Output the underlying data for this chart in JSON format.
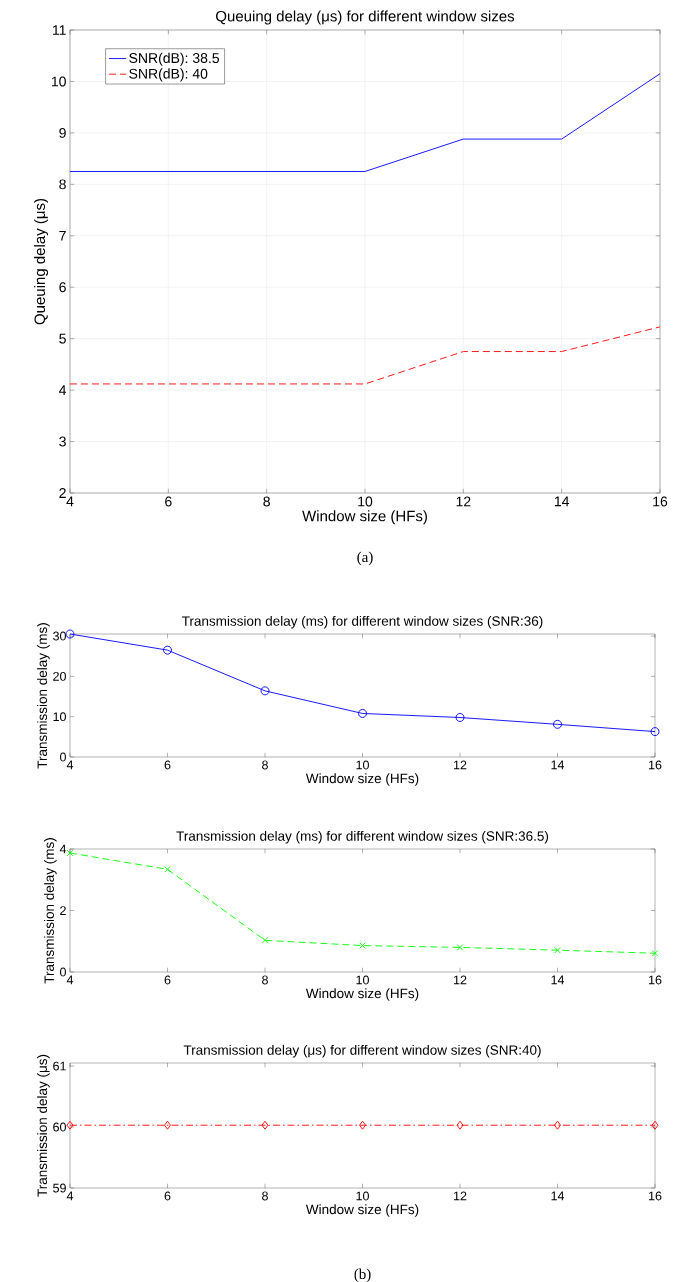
{
  "chart_data": [
    {
      "type": "line",
      "title": "Queuing delay (μs) for different window sizes",
      "xlabel": "Window size (HFs)",
      "ylabel": "Queuing delay (μs)",
      "x": [
        4,
        6,
        8,
        10,
        12,
        14,
        16
      ],
      "series": [
        {
          "name": "SNR(dB): 38.5",
          "color": "#0000ff",
          "line_style": "solid",
          "values": [
            8.25,
            8.25,
            8.25,
            8.25,
            8.88,
            8.88,
            10.15
          ]
        },
        {
          "name": "SNR(dB): 40",
          "color": "#ff0000",
          "line_style": "dashed",
          "values": [
            4.12,
            4.12,
            4.12,
            4.12,
            4.75,
            4.75,
            5.23
          ]
        }
      ],
      "xlim": [
        4,
        16
      ],
      "xticks": [
        4,
        6,
        8,
        10,
        12,
        14,
        16
      ],
      "ylim": [
        2,
        11
      ],
      "yticks": [
        2,
        3,
        4,
        5,
        6,
        7,
        8,
        9,
        10,
        11
      ],
      "grid": true,
      "legend": "top left",
      "annotations": [
        "(a)"
      ]
    },
    {
      "type": "line",
      "title": "Transmission delay (ms) for different window sizes (SNR:36)",
      "xlabel": "Window size (HFs)",
      "ylabel": "Transmission delay (ms)",
      "x": [
        4,
        6,
        8,
        10,
        12,
        14,
        16
      ],
      "series": [
        {
          "color": "#0000ff",
          "line_style": "solid",
          "values": [
            30.5,
            26.5,
            16.4,
            10.8,
            9.8,
            8.1,
            6.3
          ]
        }
      ],
      "xlim": [
        4,
        16
      ],
      "xticks": [
        4,
        6,
        8,
        10,
        12,
        14,
        16
      ],
      "ylim": [
        0,
        30.5
      ],
      "yticks": [
        0,
        10,
        20,
        30
      ],
      "marker": "circle"
    },
    {
      "type": "line",
      "title": "Transmission delay (ms) for different window sizes (SNR:36.5)",
      "xlabel": "Window size (HFs)",
      "ylabel": "Transmission delay (ms)",
      "x": [
        4,
        6,
        8,
        10,
        12,
        14,
        16
      ],
      "series": [
        {
          "color": "#00ff00",
          "line_style": "dashed",
          "values": [
            3.87,
            3.34,
            1.03,
            0.86,
            0.8,
            0.71,
            0.61
          ]
        }
      ],
      "xlim": [
        4,
        16
      ],
      "xticks": [
        4,
        6,
        8,
        10,
        12,
        14,
        16
      ],
      "ylim": [
        0,
        4
      ],
      "yticks": [
        0,
        2,
        4
      ],
      "marker": "cross"
    },
    {
      "type": "line",
      "title": "Transmission delay (μs) for different window sizes (SNR:40)",
      "xlabel": "Window size (HFs)",
      "ylabel": "Transmission delay (μs)",
      "x": [
        4,
        6,
        8,
        10,
        12,
        14,
        16
      ],
      "series": [
        {
          "color": "#ff0000",
          "line_style": "dashdot",
          "values": [
            60.03,
            60.03,
            60.03,
            60.03,
            60.03,
            60.03,
            60.03
          ]
        }
      ],
      "xlim": [
        4,
        16
      ],
      "xticks": [
        4,
        6,
        8,
        10,
        12,
        14,
        16
      ],
      "ylim": [
        59,
        61.05
      ],
      "yticks": [
        59,
        60,
        61
      ],
      "marker": "diamond",
      "annotations": [
        "(b)"
      ]
    }
  ]
}
